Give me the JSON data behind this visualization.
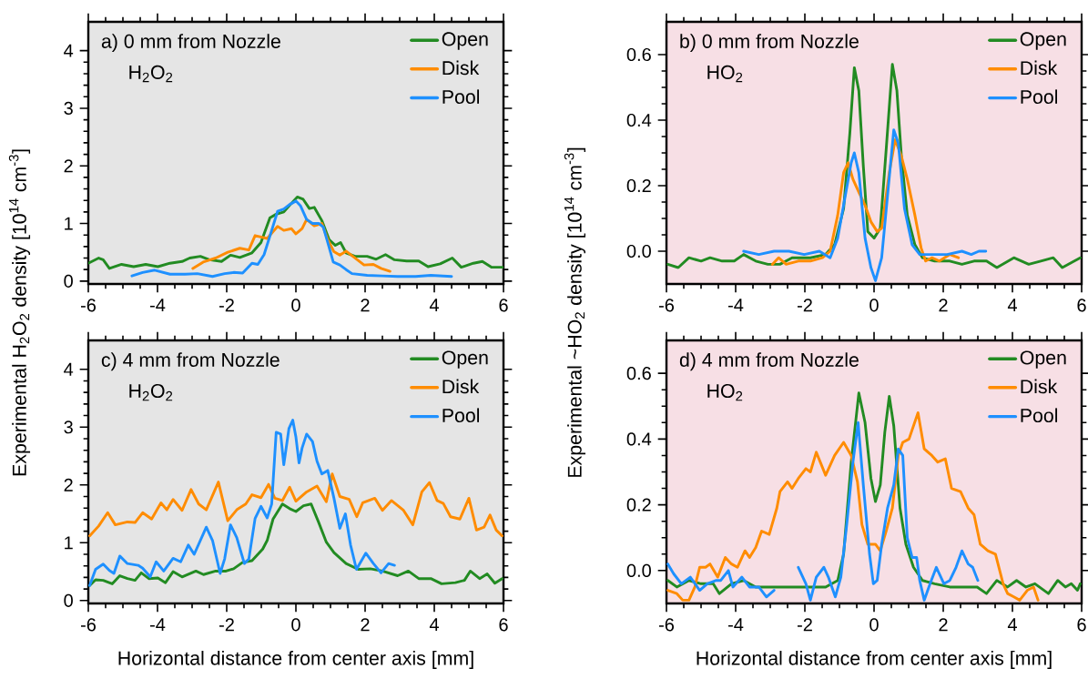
{
  "chart_data": [
    {
      "type": "line",
      "title": "a) 0 mm from Nozzle",
      "subtitle": "H$_{2}$O$_{2}$",
      "ylabel": "Experimental H$_{2}$O$_{2}$ density [10$^{14}$ cm$^{-3}$]",
      "legend": "top right",
      "xlim": [
        -6,
        6
      ],
      "xticks": [
        -6,
        -4,
        -2,
        0,
        2,
        4,
        6
      ],
      "ylim": [
        -0.05,
        4.5
      ],
      "yticks": [
        0,
        1,
        2,
        3,
        4
      ],
      "series": [
        {
          "name": "Open",
          "color": "#228b22",
          "x": [
            -6,
            -5.7,
            -5.57,
            -5.39,
            -5.04,
            -4.69,
            -4.34,
            -3.99,
            -3.64,
            -3.29,
            -3.07,
            -2.76,
            -2.5,
            -2.15,
            -1.89,
            -1.62,
            -1.27,
            -1.01,
            -0.75,
            -0.57,
            -0.35,
            -0.13,
            0.04,
            0.21,
            0.39,
            0.53,
            0.75,
            0.96,
            1.14,
            1.29,
            1.45,
            1.71,
            2.06,
            2.32,
            2.59,
            2.85,
            3.2,
            3.55,
            3.82,
            4.17,
            4.52,
            4.78,
            5.13,
            5.39,
            5.66,
            6
          ],
          "values": [
            0.31,
            0.4,
            0.37,
            0.22,
            0.29,
            0.25,
            0.29,
            0.25,
            0.31,
            0.34,
            0.4,
            0.43,
            0.37,
            0.34,
            0.45,
            0.41,
            0.49,
            0.67,
            1.1,
            1.16,
            1.2,
            1.35,
            1.46,
            1.42,
            1.26,
            1.28,
            1.05,
            0.72,
            0.62,
            0.67,
            0.49,
            0.43,
            0.43,
            0.38,
            0.46,
            0.37,
            0.35,
            0.35,
            0.25,
            0.3,
            0.4,
            0.24,
            0.31,
            0.34,
            0.24,
            0.24
          ]
        },
        {
          "name": "Disk",
          "color": "#ff8c00",
          "x": [
            -2.98,
            -2.68,
            -2.32,
            -1.97,
            -1.62,
            -1.36,
            -1.18,
            -0.83,
            -0.53,
            -0.35,
            -0.13,
            0,
            0.18,
            0.31,
            0.53,
            0.75,
            0.92,
            1.1,
            1.27,
            1.45,
            1.71,
            1.97,
            2.24,
            2.46,
            2.72
          ],
          "values": [
            0.22,
            0.33,
            0.4,
            0.5,
            0.57,
            0.54,
            0.79,
            0.74,
            0.95,
            0.88,
            0.91,
            0.82,
            0.91,
            1.07,
            0.96,
            1.0,
            0.72,
            0.51,
            0.45,
            0.52,
            0.4,
            0.28,
            0.29,
            0.22,
            0.17
          ]
        },
        {
          "name": "Pool",
          "color": "#1e90ff",
          "x": [
            -4.74,
            -4.43,
            -4.08,
            -3.64,
            -3.2,
            -2.85,
            -2.41,
            -2.06,
            -1.8,
            -1.54,
            -1.27,
            -1.1,
            -0.92,
            -0.7,
            -0.53,
            -0.35,
            -0.18,
            0,
            0.13,
            0.31,
            0.48,
            0.66,
            0.79,
            0.92,
            1.08,
            1.27,
            1.45,
            1.62,
            2.06,
            2.5,
            2.94,
            3.46,
            3.9,
            4.5
          ],
          "values": [
            0.09,
            0.15,
            0.19,
            0.12,
            0.12,
            0.13,
            0.08,
            0.13,
            0.15,
            0.14,
            0.31,
            0.29,
            0.46,
            0.88,
            1.21,
            1.25,
            1.33,
            1.39,
            1.31,
            1.07,
            1.0,
            1.0,
            0.94,
            0.67,
            0.33,
            0.28,
            0.2,
            0.13,
            0.1,
            0.09,
            0.08,
            0.08,
            0.1,
            0.08
          ]
        }
      ]
    },
    {
      "type": "line",
      "title": "b) 0 mm from Nozzle",
      "subtitle": "HO$_{2}$",
      "ylabel": "Experimental ~HO$_{2}$ density [10$^{14}$ cm$^{-3}$]",
      "legend": "top right",
      "xlim": [
        -6,
        6
      ],
      "xticks": [
        -6,
        -4,
        -2,
        0,
        2,
        4,
        6
      ],
      "ylim": [
        -0.1,
        0.7
      ],
      "yticks": [
        {
          "value": 0,
          "label": "0.0"
        },
        {
          "value": 0.2,
          "label": "0.2"
        },
        {
          "value": 0.4,
          "label": "0.4"
        },
        {
          "value": 0.6,
          "label": "0.6"
        }
      ],
      "series": [
        {
          "name": "Open",
          "color": "#228b22",
          "x": [
            -5.96,
            -5.66,
            -5.35,
            -5,
            -4.74,
            -4.39,
            -4.04,
            -3.77,
            -3.42,
            -3.07,
            -2.72,
            -2.37,
            -1.84,
            -1.4,
            -1.14,
            -0.88,
            -0.7,
            -0.57,
            -0.44,
            -0.31,
            -0.18,
            0,
            0.18,
            0.35,
            0.53,
            0.66,
            0.79,
            0.96,
            1.18,
            1.4,
            1.75,
            2.19,
            2.54,
            2.89,
            3.25,
            3.55,
            4.04,
            4.47,
            4.82,
            5.18,
            5.44,
            5.79,
            5.96
          ],
          "values": [
            -0.04,
            -0.05,
            -0.02,
            -0.03,
            -0.02,
            -0.03,
            -0.03,
            -0.01,
            -0.03,
            -0.04,
            -0.04,
            -0.02,
            -0.02,
            -0.01,
            0.02,
            0.13,
            0.36,
            0.56,
            0.49,
            0.26,
            0.06,
            0.04,
            0.07,
            0.31,
            0.57,
            0.49,
            0.29,
            0.11,
            0.02,
            -0.02,
            -0.03,
            -0.03,
            -0.04,
            -0.03,
            -0.03,
            -0.05,
            -0.02,
            -0.04,
            -0.03,
            -0.02,
            -0.05,
            -0.03,
            -0.02
          ]
        },
        {
          "name": "Disk",
          "color": "#ff8c00",
          "x": [
            -2.94,
            -2.76,
            -2.54,
            -2.19,
            -1.84,
            -1.49,
            -1.27,
            -1.05,
            -0.88,
            -0.75,
            -0.61,
            -0.44,
            -0.26,
            -0.09,
            0.09,
            0.22,
            0.44,
            0.61,
            0.79,
            0.96,
            1.18,
            1.36,
            1.49,
            1.67,
            1.89,
            2.19,
            2.44
          ],
          "values": [
            -0.04,
            -0.02,
            -0.04,
            -0.03,
            -0.03,
            -0.02,
            0.0,
            0.11,
            0.24,
            0.27,
            0.22,
            0.18,
            0.14,
            0.09,
            0.06,
            0.07,
            0.24,
            0.34,
            0.29,
            0.22,
            0.11,
            0.01,
            -0.03,
            -0.02,
            -0.03,
            -0.01,
            -0.02
          ]
        },
        {
          "name": "Pool",
          "color": "#1e90ff",
          "x": [
            -3.77,
            -3.33,
            -2.89,
            -2.46,
            -2.02,
            -1.58,
            -1.27,
            -1.05,
            -0.83,
            -0.66,
            -0.57,
            -0.44,
            -0.26,
            -0.09,
            0.04,
            0.22,
            0.39,
            0.57,
            0.7,
            0.88,
            1.1,
            1.32,
            1.67,
            2.11,
            2.54,
            2.81,
            3.03,
            3.23
          ],
          "values": [
            0.0,
            -0.01,
            0.0,
            0.0,
            -0.01,
            0.0,
            -0.02,
            0.04,
            0.17,
            0.27,
            0.3,
            0.24,
            0.04,
            -0.05,
            -0.09,
            -0.02,
            0.17,
            0.37,
            0.33,
            0.13,
            0.02,
            -0.01,
            -0.01,
            -0.01,
            0.0,
            -0.01,
            0.0,
            0.0
          ]
        }
      ]
    },
    {
      "type": "line",
      "title": "c) 4 mm from Nozzle",
      "subtitle": "H$_{2}$O$_{2}$",
      "xlabel": "Horizontal distance from center axis [mm]",
      "legend": "top right",
      "xlim": [
        -6,
        6
      ],
      "xticks": [
        -6,
        -4,
        -2,
        0,
        2,
        4,
        6
      ],
      "ylim": [
        -0.05,
        4.5
      ],
      "yticks": [
        0,
        1,
        2,
        3,
        4
      ],
      "series": [
        {
          "name": "Open",
          "color": "#228b22",
          "x": [
            -5.96,
            -5.79,
            -5.57,
            -5.31,
            -5.09,
            -4.87,
            -4.65,
            -4.47,
            -4.25,
            -3.99,
            -3.77,
            -3.55,
            -3.29,
            -2.89,
            -2.67,
            -2.32,
            -2.02,
            -1.8,
            -1.54,
            -1.27,
            -0.96,
            -0.83,
            -0.66,
            -0.39,
            -0.18,
            0,
            0.22,
            0.44,
            0.66,
            0.88,
            1.1,
            1.45,
            1.8,
            2.15,
            2.5,
            2.94,
            3.25,
            3.55,
            3.9,
            4.21,
            4.61,
            4.87,
            5.04,
            5.31,
            5.53,
            5.75,
            5.96
          ],
          "values": [
            0.26,
            0.36,
            0.35,
            0.29,
            0.43,
            0.38,
            0.35,
            0.48,
            0.38,
            0.39,
            0.31,
            0.5,
            0.41,
            0.51,
            0.45,
            0.51,
            0.51,
            0.55,
            0.66,
            0.69,
            0.89,
            1.04,
            1.41,
            1.67,
            1.59,
            1.54,
            1.64,
            1.67,
            1.35,
            1.01,
            0.83,
            0.64,
            0.54,
            0.55,
            0.51,
            0.43,
            0.51,
            0.38,
            0.38,
            0.29,
            0.31,
            0.35,
            0.51,
            0.38,
            0.46,
            0.3,
            0.38
          ]
        },
        {
          "name": "Disk",
          "color": "#ff8c00",
          "x": [
            -5.96,
            -5.7,
            -5.44,
            -5.22,
            -4.87,
            -4.65,
            -4.43,
            -4.17,
            -3.9,
            -3.73,
            -3.55,
            -3.29,
            -3.03,
            -2.81,
            -2.59,
            -2.24,
            -1.97,
            -1.71,
            -1.45,
            -1.27,
            -1.01,
            -0.79,
            -0.61,
            -0.39,
            -0.18,
            0,
            0.31,
            0.61,
            0.88,
            1.05,
            1.27,
            1.54,
            1.76,
            1.93,
            2.28,
            2.5,
            2.76,
            3.11,
            3.38,
            3.64,
            3.86,
            4.08,
            4.26,
            4.47,
            4.74,
            5,
            5.22,
            5.44,
            5.61,
            5.79,
            5.96
          ],
          "values": [
            1.12,
            1.29,
            1.52,
            1.31,
            1.36,
            1.35,
            1.52,
            1.41,
            1.69,
            1.57,
            1.75,
            1.56,
            1.92,
            1.67,
            1.57,
            2.05,
            1.38,
            1.57,
            1.67,
            1.83,
            1.78,
            2.01,
            1.77,
            1.73,
            1.96,
            1.72,
            1.88,
            1.98,
            1.71,
            2.19,
            1.8,
            1.75,
            1.45,
            1.69,
            1.77,
            1.56,
            1.73,
            1.56,
            1.31,
            1.88,
            2.04,
            1.73,
            1.68,
            1.45,
            1.41,
            1.77,
            1.22,
            1.27,
            1.48,
            1.22,
            1.12
          ]
        },
        {
          "name": "Pool",
          "color": "#1e90ff",
          "x": [
            -5.96,
            -5.79,
            -5.57,
            -5.39,
            -5.26,
            -5.09,
            -4.87,
            -4.56,
            -4.43,
            -4.21,
            -4.04,
            -3.82,
            -3.55,
            -3.33,
            -3.11,
            -2.94,
            -2.59,
            -2.41,
            -2.19,
            -2.06,
            -1.89,
            -1.71,
            -1.49,
            -1.36,
            -1.18,
            -1.01,
            -0.83,
            -0.7,
            -0.57,
            -0.44,
            -0.35,
            -0.2,
            -0.09,
            0,
            0.09,
            0.18,
            0.31,
            0.48,
            0.61,
            0.75,
            0.92,
            1.1,
            1.27,
            1.43,
            1.58,
            1.75,
            2.02,
            2.24,
            2.46,
            2.68,
            2.85
          ],
          "values": [
            0.26,
            0.54,
            0.63,
            0.52,
            0.47,
            0.77,
            0.64,
            0.61,
            0.56,
            0.41,
            0.67,
            0.51,
            0.73,
            0.67,
            0.96,
            0.8,
            1.27,
            1.04,
            0.47,
            0.72,
            1.31,
            1.09,
            0.64,
            0.72,
            1.42,
            1.63,
            1.43,
            1.67,
            2.91,
            2.88,
            2.35,
            2.98,
            3.12,
            2.83,
            2.38,
            2.64,
            2.88,
            2.75,
            2.41,
            2.19,
            2.25,
            1.77,
            1.25,
            1.5,
            0.96,
            0.54,
            0.82,
            0.64,
            0.48,
            0.64,
            0.61
          ]
        }
      ]
    },
    {
      "type": "line",
      "title": "d) 4 mm from Nozzle",
      "subtitle": "HO$_{2}$",
      "xlabel": "Horizontal distance from center axis [mm]",
      "legend": "top right",
      "xlim": [
        -6,
        6
      ],
      "xticks": [
        -6,
        -4,
        -2,
        0,
        2,
        4,
        6
      ],
      "ylim": [
        -0.1,
        0.7
      ],
      "yticks": [
        {
          "value": 0,
          "label": "0.0"
        },
        {
          "value": 0.2,
          "label": "0.2"
        },
        {
          "value": 0.4,
          "label": "0.4"
        },
        {
          "value": 0.6,
          "label": "0.6"
        }
      ],
      "series": [
        {
          "name": "Open",
          "color": "#228b22",
          "x": [
            -5.96,
            -5.7,
            -5.35,
            -5,
            -4.65,
            -4.47,
            -4.12,
            -3.77,
            -3.42,
            -3.07,
            -2.72,
            -2.37,
            -1.84,
            -1.4,
            -1.05,
            -0.88,
            -0.66,
            -0.44,
            -0.26,
            -0.09,
            0.04,
            0.18,
            0.31,
            0.44,
            0.57,
            0.75,
            0.92,
            1.14,
            1.4,
            1.75,
            2.19,
            2.54,
            2.98,
            3.25,
            3.55,
            3.86,
            4.12,
            4.39,
            4.65,
            5.04,
            5.31,
            5.53,
            5.7,
            5.88,
            5.96
          ],
          "values": [
            -0.03,
            -0.05,
            -0.03,
            -0.04,
            -0.04,
            -0.07,
            -0.04,
            -0.03,
            -0.05,
            -0.05,
            -0.05,
            -0.05,
            -0.05,
            -0.05,
            -0.03,
            0.05,
            0.33,
            0.54,
            0.45,
            0.28,
            0.21,
            0.26,
            0.42,
            0.53,
            0.44,
            0.19,
            0.08,
            0.01,
            -0.03,
            -0.04,
            -0.05,
            -0.05,
            -0.05,
            -0.07,
            -0.03,
            -0.05,
            -0.03,
            -0.05,
            -0.04,
            -0.07,
            -0.03,
            -0.05,
            -0.04,
            -0.06,
            -0.04
          ]
        },
        {
          "name": "Disk",
          "color": "#ff8c00",
          "x": [
            -5.96,
            -5.7,
            -5.53,
            -5.35,
            -5.18,
            -5.04,
            -4.87,
            -4.74,
            -4.52,
            -4.3,
            -4.12,
            -3.95,
            -3.73,
            -3.6,
            -3.42,
            -3.25,
            -3.03,
            -2.81,
            -2.72,
            -2.5,
            -2.37,
            -2.19,
            -1.97,
            -1.84,
            -1.67,
            -1.4,
            -1.14,
            -0.88,
            -0.66,
            -0.48,
            -0.35,
            -0.18,
            0.04,
            0.18,
            0.35,
            0.53,
            0.7,
            0.83,
            1.01,
            1.27,
            1.45,
            1.67,
            1.84,
            2.06,
            2.24,
            2.5,
            2.72,
            2.89,
            3.07,
            3.29,
            3.51,
            3.73,
            3.86,
            4.04,
            4.21,
            4.43,
            4.61,
            4.74
          ],
          "values": [
            -0.06,
            -0.07,
            -0.09,
            -0.09,
            -0.05,
            0.01,
            0.01,
            0.02,
            -0.02,
            0.04,
            0.02,
            0.01,
            0.06,
            0.04,
            0.07,
            0.12,
            0.11,
            0.19,
            0.24,
            0.27,
            0.25,
            0.28,
            0.31,
            0.3,
            0.36,
            0.29,
            0.35,
            0.39,
            0.35,
            0.27,
            0.14,
            0.08,
            0.08,
            0.06,
            0.12,
            0.19,
            0.35,
            0.39,
            0.4,
            0.48,
            0.37,
            0.35,
            0.33,
            0.34,
            0.25,
            0.24,
            0.19,
            0.17,
            0.08,
            0.06,
            0.05,
            -0.04,
            -0.07,
            -0.08,
            -0.09,
            -0.06,
            -0.05,
            -0.09
          ]
        },
        {
          "name": "Pool",
          "color": "#1e90ff",
          "x": [
            -5.96,
            -5.79,
            -5.57,
            -5.31,
            -5.04,
            -4.82,
            -4.56,
            -4.43,
            -4.21,
            -4.08,
            -3.82,
            -3.6,
            -3.33,
            -3.11,
            -2.89,
            -2.72,
            -2.56,
            -2.41,
            -2.19,
            -1.97,
            -1.84,
            -1.67,
            -1.45,
            -1.32,
            -1.12,
            -0.96,
            -0.79,
            -0.61,
            -0.46,
            -0.31,
            -0.13,
            -0.02,
            0.09,
            0.22,
            0.39,
            0.57,
            0.7,
            0.83,
            0.96,
            1.1,
            1.23,
            1.32,
            1.45,
            1.62,
            1.8,
            2.02,
            2.19,
            2.37,
            2.54,
            2.72,
            2.85,
            3
          ],
          "values": [
            0.02,
            -0.01,
            -0.04,
            -0.02,
            -0.06,
            -0.04,
            -0.03,
            -0.03,
            0.0,
            -0.05,
            -0.02,
            -0.05,
            -0.05,
            -0.08,
            -0.06,
            null,
            null,
            null,
            0.01,
            -0.04,
            -0.09,
            -0.02,
            0.01,
            -0.02,
            -0.08,
            -0.02,
            0.14,
            0.33,
            0.45,
            0.26,
            0.05,
            -0.04,
            -0.03,
            0.08,
            0.19,
            0.26,
            0.37,
            0.35,
            0.1,
            0.04,
            0.04,
            -0.03,
            -0.09,
            -0.04,
            0.01,
            -0.04,
            -0.03,
            0.01,
            0.06,
            0.02,
            0.01,
            -0.03
          ]
        }
      ]
    }
  ]
}
